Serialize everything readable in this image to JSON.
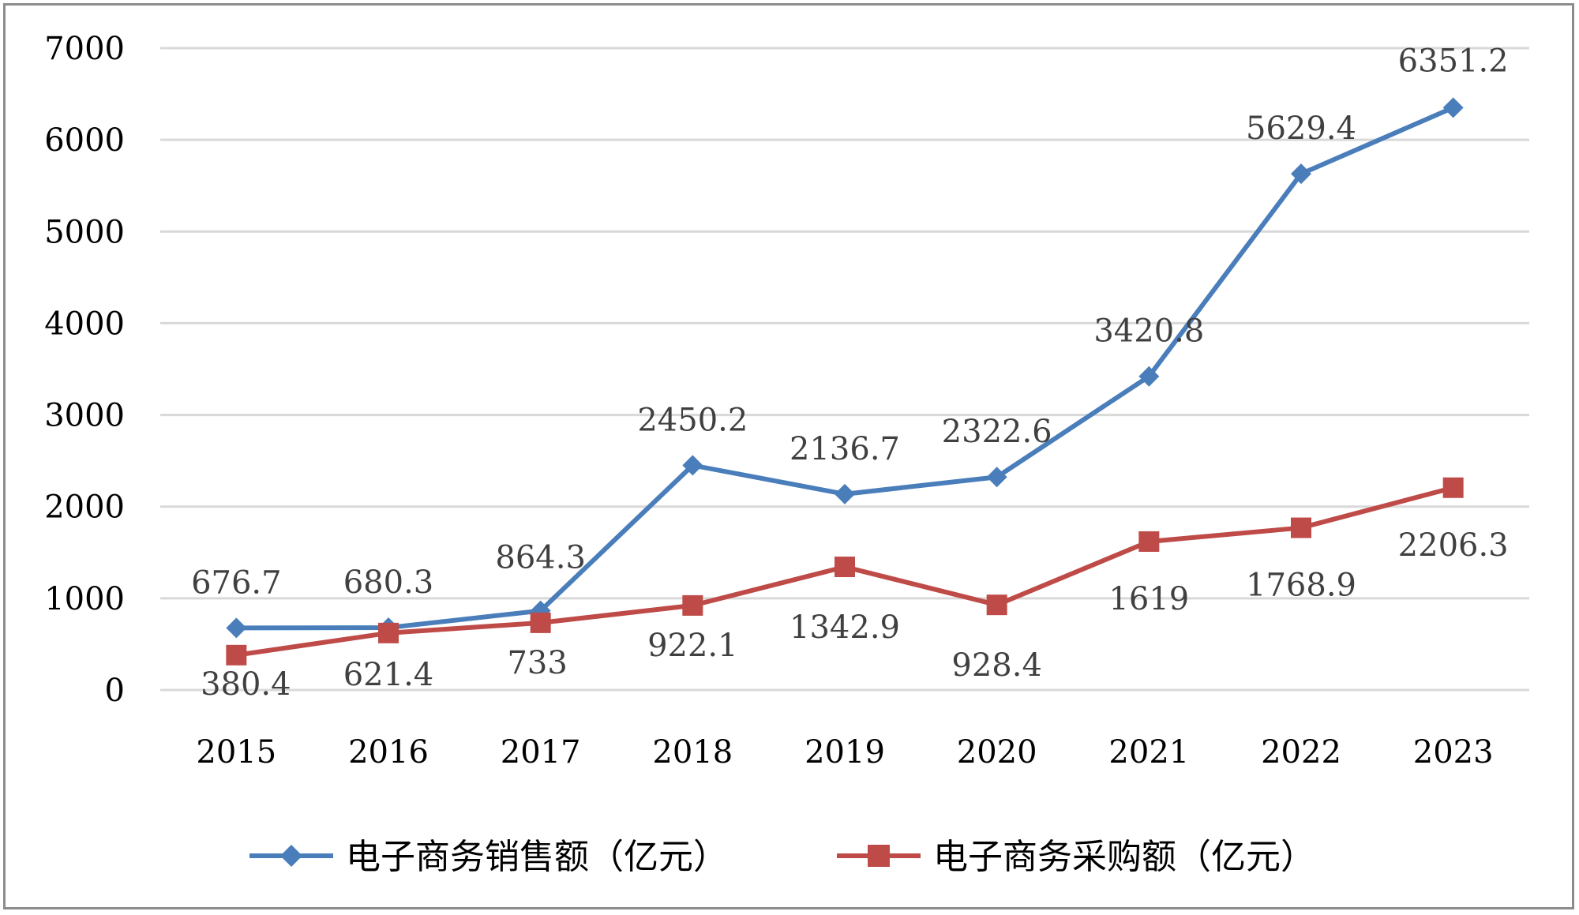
{
  "chart_data": {
    "type": "line",
    "title": "",
    "xlabel": "",
    "ylabel": "",
    "categories": [
      "2015",
      "2016",
      "2017",
      "2018",
      "2019",
      "2020",
      "2021",
      "2022",
      "2023"
    ],
    "ylim": [
      0,
      7000
    ],
    "yticks": [
      0,
      1000,
      2000,
      3000,
      4000,
      5000,
      6000,
      7000
    ],
    "grid": true,
    "legend_position": "bottom",
    "series": [
      {
        "name": "电子商务销售额（亿元）",
        "color": "#4a7ebb",
        "marker": "diamond",
        "values": [
          676.7,
          680.3,
          864.3,
          2450.2,
          2136.7,
          2322.6,
          3420.8,
          5629.4,
          6351.2
        ],
        "labels": [
          "676.7",
          "680.3",
          "864.3",
          "2450.2",
          "2136.7",
          "2322.6",
          "3420.8",
          "5629.4",
          "6351.2"
        ]
      },
      {
        "name": "电子商务采购额（亿元）",
        "color": "#be4b48",
        "marker": "square",
        "values": [
          380.4,
          621.4,
          733,
          922.1,
          1342.9,
          928.4,
          1619,
          1768.9,
          2206.3
        ],
        "labels": [
          "380.4",
          "621.4",
          "733",
          "922.1",
          "1342.9",
          "928.4",
          "1619",
          "1768.9",
          "2206.3"
        ]
      }
    ]
  }
}
